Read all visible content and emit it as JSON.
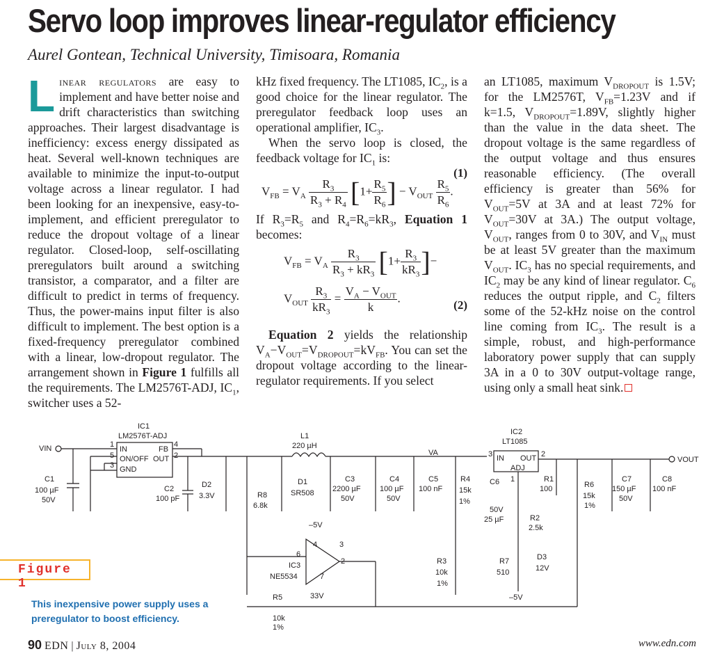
{
  "title": "Servo loop improves linear-regulator efficiency",
  "byline": "Aurel Gontean, Technical University, Timisoara, Romania",
  "col1": {
    "dropcap": "L",
    "smallcaps": "inear regulators",
    "text": " are easy to implement and have better noise and drift characteristics than switching approaches. Their largest disadvantage is inefficiency: excess energy dissipated as heat. Several well-known techniques are available to minimize the input-to-output voltage across a linear regulator. I had been looking for an inexpensive, easy-to-implement, and efficient preregulator to reduce the dropout voltage of a linear regulator. Closed-loop, self-oscillating preregulators built around a switching transistor, a comparator, and a filter are difficult to predict in terms of frequency. Thus, the power-mains input filter is also difficult to implement. The best option is a fixed-frequency preregulator combined with a linear, low-dropout regulator. The arrangement shown in ",
    "fig_ref": "Figure 1",
    "text2": " fulfills all the requirements. The LM2576T-ADJ, IC",
    "sub1": "1",
    "text3": ", switcher uses a 52-"
  },
  "col2": {
    "p1a": "kHz fixed frequency. The LT1085, IC",
    "p1b": ", is a good choice for the linear regulator. The preregulator feedback loop uses an operational amplifier, IC",
    "p1c": ".",
    "p2a": "When the servo loop is closed, the feedback voltage for IC",
    "p2b": " is:",
    "eq1_num": "(1)",
    "p3a": "If R",
    "p3b": " and R",
    "p3c": ", ",
    "p3d": "Equation 1",
    "p3e": " becomes:",
    "eq2_num": "(2)",
    "p4a": "Equation 2",
    "p4b": " yields the relationship V",
    "p4c": ". You can set the dropout voltage according to the linear-regulator requirements. If you select"
  },
  "col3": {
    "t1": "an LT1085, maximum V",
    "t2": " is 1.5V; for the LM2576T, V",
    "t3": "=1.23V and if k=1.5, V",
    "t4": "=1.89V, slightly higher than the value in the data sheet. The dropout voltage is the same regardless of the output voltage and thus ensures reasonable efficiency. (The overall efficiency is greater than 56% for V",
    "t5": "=5V at 3A and at least 72% for V",
    "t6": "=30V at 3A.) The output voltage, V",
    "t7": ", ranges from 0 to 30V, and V",
    "t8": " must be at least 5V greater than the maximum V",
    "t9": ". IC",
    "t10": " has no special requirements, and IC",
    "t11": " may be any kind of linear regulator. C",
    "t12": " reduces the output ripple, and C",
    "t13": " filters some of the 52-kHz noise on the control line coming from IC",
    "t14": ". The result is a simple, robust, and high-performance laboratory power supply that can supply 3A in a 0 to 30V output-voltage range, using only a small heat sink."
  },
  "figure": {
    "tag": "Figure 1",
    "caption": "This inexpensive power supply uses a preregulator to boost efficiency."
  },
  "schematic": {
    "ic1": "IC1",
    "ic1_part": "LM2576T-ADJ",
    "ic1_pins": [
      "IN",
      "FB",
      "ON/OFF",
      "OUT",
      "GND"
    ],
    "ic2": "IC2",
    "ic2_part": "LT1085",
    "ic2_pins": [
      "IN",
      "OUT",
      "ADJ"
    ],
    "ic3": "IC3",
    "ic3_part": "NE5534",
    "vin": "VIN",
    "vout": "VOUT",
    "va": "VA",
    "l1": "L1",
    "l1_val": "220 µH",
    "c1": "C1",
    "c1_val": "100 µF",
    "c1_v": "50V",
    "c2": "C2",
    "c2_val": "100 pF",
    "c3": "C3",
    "c3_val": "2200 µF",
    "c3_v": "50V",
    "c4": "C4",
    "c4_val": "100 µF",
    "c4_v": "50V",
    "c5": "C5",
    "c5_val": "100 nF",
    "c6": "C6",
    "c6_v": "50V",
    "c6_val": "25 µF",
    "c7": "C7",
    "c7_val": "150 µF",
    "c7_v": "50V",
    "c8": "C8",
    "c8_val": "100 nF",
    "d1": "D1",
    "d1_val": "SR508",
    "d2": "D2",
    "d2_val": "3.3V",
    "d3": "D3",
    "d3_val": "12V",
    "r1": "R1",
    "r1_val": "100",
    "r2": "R2",
    "r2_val": "2.5k",
    "r3": "R3",
    "r3_val": "10k",
    "r3_tol": "1%",
    "r4": "R4",
    "r4_val": "15k",
    "r4_tol": "1%",
    "r5": "R5",
    "r5_val": "10k",
    "r5_tol": "1%",
    "r6": "R6",
    "r6_val": "15k",
    "r6_tol": "1%",
    "r7": "R7",
    "r7_val": "510",
    "r8": "R8",
    "r8_val": "6.8k",
    "neg5": "–5V",
    "pos33": "33V",
    "pins": [
      "1",
      "5",
      "3",
      "4",
      "2",
      "6",
      "4",
      "3",
      "2",
      "7",
      "3",
      "1",
      "2"
    ]
  },
  "footer": {
    "page": "90",
    "pub": "EDN",
    "date": "July 8, 2004",
    "url": "www.edn.com"
  }
}
